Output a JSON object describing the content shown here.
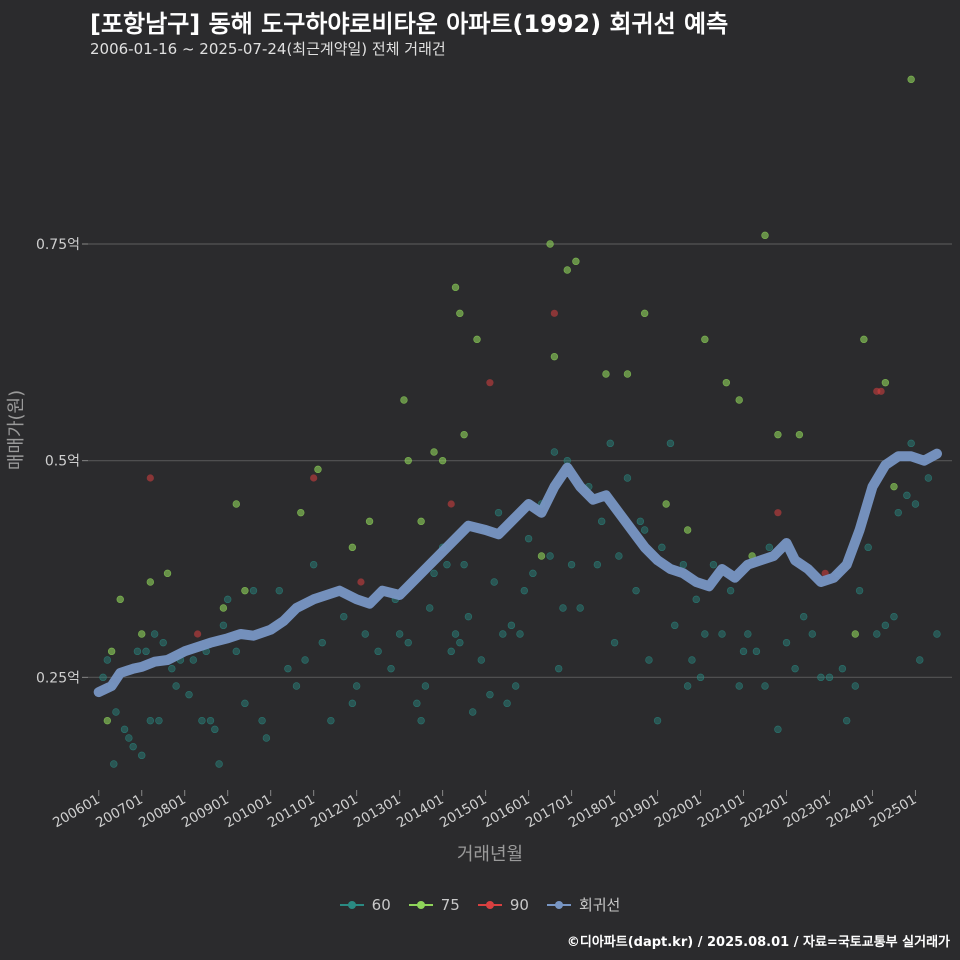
{
  "header": {
    "title": "[포항남구] 동해 도구하야로비타운 아파트(1992) 회귀선 예측",
    "subtitle": "2006-01-16 ~ 2025-07-24(최근계약일) 전체 거래건"
  },
  "footer": {
    "credit": "©디아파트(dapt.kr) / 2025.08.01 / 자료=국토교통부 실거래가"
  },
  "colors": {
    "background": "#2b2b2d",
    "grid": "#555555",
    "s60": "#2a8a82",
    "s75": "#8fd45a",
    "s90": "#d84040",
    "regression": "#7896c4"
  },
  "chart_data": {
    "type": "scatter",
    "title": "[포항남구] 동해 도구하야로비타운 아파트(1992) 회귀선 예측",
    "subtitle": "2006-01-16 ~ 2025-07-24(최근계약일) 전체 거래건",
    "xlabel": "거래년월",
    "ylabel": "매매가(원)",
    "x_unit": "decimal year",
    "xlim": [
      2005.75,
      2025.85
    ],
    "ylim": [
      0.12,
      0.96
    ],
    "x_ticks": [
      {
        "label": "200601",
        "value": 2006.0
      },
      {
        "label": "200701",
        "value": 2007.0
      },
      {
        "label": "200801",
        "value": 2008.0
      },
      {
        "label": "200901",
        "value": 2009.0
      },
      {
        "label": "201001",
        "value": 2010.0
      },
      {
        "label": "201101",
        "value": 2011.0
      },
      {
        "label": "201201",
        "value": 2012.0
      },
      {
        "label": "201301",
        "value": 2013.0
      },
      {
        "label": "201401",
        "value": 2014.0
      },
      {
        "label": "201501",
        "value": 2015.0
      },
      {
        "label": "201601",
        "value": 2016.0
      },
      {
        "label": "201701",
        "value": 2017.0
      },
      {
        "label": "201801",
        "value": 2018.0
      },
      {
        "label": "201901",
        "value": 2019.0
      },
      {
        "label": "202001",
        "value": 2020.0
      },
      {
        "label": "202101",
        "value": 2021.0
      },
      {
        "label": "202201",
        "value": 2022.0
      },
      {
        "label": "202301",
        "value": 2023.0
      },
      {
        "label": "202401",
        "value": 2024.0
      },
      {
        "label": "202501",
        "value": 2025.0
      }
    ],
    "y_ticks": [
      {
        "label": "0.25억",
        "value": 0.25
      },
      {
        "label": "0.5억",
        "value": 0.5
      },
      {
        "label": "0.75억",
        "value": 0.75
      }
    ],
    "legend": [
      "60",
      "75",
      "90",
      "회귀선"
    ],
    "series": [
      {
        "name": "60",
        "color": "#2a8a82",
        "points": [
          [
            2006.1,
            0.25
          ],
          [
            2006.2,
            0.27
          ],
          [
            2006.3,
            0.24
          ],
          [
            2006.35,
            0.15
          ],
          [
            2006.4,
            0.21
          ],
          [
            2006.6,
            0.19
          ],
          [
            2006.7,
            0.18
          ],
          [
            2006.8,
            0.17
          ],
          [
            2006.9,
            0.28
          ],
          [
            2007.0,
            0.16
          ],
          [
            2007.1,
            0.28
          ],
          [
            2007.2,
            0.2
          ],
          [
            2007.3,
            0.3
          ],
          [
            2007.4,
            0.2
          ],
          [
            2007.5,
            0.29
          ],
          [
            2007.7,
            0.26
          ],
          [
            2007.8,
            0.24
          ],
          [
            2007.9,
            0.27
          ],
          [
            2008.1,
            0.23
          ],
          [
            2008.2,
            0.27
          ],
          [
            2008.4,
            0.2
          ],
          [
            2008.5,
            0.28
          ],
          [
            2008.6,
            0.2
          ],
          [
            2008.7,
            0.19
          ],
          [
            2008.8,
            0.15
          ],
          [
            2008.9,
            0.31
          ],
          [
            2009.0,
            0.34
          ],
          [
            2009.2,
            0.28
          ],
          [
            2009.4,
            0.22
          ],
          [
            2009.6,
            0.35
          ],
          [
            2009.8,
            0.2
          ],
          [
            2009.9,
            0.18
          ],
          [
            2010.2,
            0.35
          ],
          [
            2010.4,
            0.26
          ],
          [
            2010.6,
            0.24
          ],
          [
            2010.8,
            0.27
          ],
          [
            2011.0,
            0.38
          ],
          [
            2011.2,
            0.29
          ],
          [
            2011.4,
            0.2
          ],
          [
            2011.7,
            0.32
          ],
          [
            2011.9,
            0.22
          ],
          [
            2012.0,
            0.24
          ],
          [
            2012.2,
            0.3
          ],
          [
            2012.5,
            0.28
          ],
          [
            2012.8,
            0.26
          ],
          [
            2012.9,
            0.34
          ],
          [
            2013.0,
            0.3
          ],
          [
            2013.2,
            0.29
          ],
          [
            2013.4,
            0.22
          ],
          [
            2013.5,
            0.2
          ],
          [
            2013.6,
            0.24
          ],
          [
            2013.7,
            0.33
          ],
          [
            2013.8,
            0.37
          ],
          [
            2014.0,
            0.4
          ],
          [
            2014.1,
            0.38
          ],
          [
            2014.2,
            0.28
          ],
          [
            2014.3,
            0.3
          ],
          [
            2014.4,
            0.29
          ],
          [
            2014.5,
            0.38
          ],
          [
            2014.6,
            0.32
          ],
          [
            2014.7,
            0.21
          ],
          [
            2014.9,
            0.27
          ],
          [
            2015.0,
            0.42
          ],
          [
            2015.1,
            0.23
          ],
          [
            2015.2,
            0.36
          ],
          [
            2015.3,
            0.44
          ],
          [
            2015.4,
            0.3
          ],
          [
            2015.5,
            0.22
          ],
          [
            2015.6,
            0.31
          ],
          [
            2015.7,
            0.24
          ],
          [
            2015.8,
            0.3
          ],
          [
            2015.9,
            0.35
          ],
          [
            2016.0,
            0.41
          ],
          [
            2016.1,
            0.37
          ],
          [
            2016.3,
            0.45
          ],
          [
            2016.5,
            0.39
          ],
          [
            2016.6,
            0.51
          ],
          [
            2016.7,
            0.26
          ],
          [
            2016.8,
            0.33
          ],
          [
            2016.9,
            0.5
          ],
          [
            2017.0,
            0.38
          ],
          [
            2017.2,
            0.33
          ],
          [
            2017.4,
            0.47
          ],
          [
            2017.6,
            0.38
          ],
          [
            2017.7,
            0.43
          ],
          [
            2017.9,
            0.52
          ],
          [
            2018.0,
            0.29
          ],
          [
            2018.1,
            0.39
          ],
          [
            2018.3,
            0.48
          ],
          [
            2018.5,
            0.35
          ],
          [
            2018.6,
            0.43
          ],
          [
            2018.7,
            0.42
          ],
          [
            2018.8,
            0.27
          ],
          [
            2019.0,
            0.2
          ],
          [
            2019.1,
            0.4
          ],
          [
            2019.3,
            0.52
          ],
          [
            2019.4,
            0.31
          ],
          [
            2019.6,
            0.38
          ],
          [
            2019.7,
            0.24
          ],
          [
            2019.8,
            0.27
          ],
          [
            2019.9,
            0.34
          ],
          [
            2020.0,
            0.25
          ],
          [
            2020.1,
            0.3
          ],
          [
            2020.3,
            0.38
          ],
          [
            2020.5,
            0.3
          ],
          [
            2020.7,
            0.35
          ],
          [
            2020.9,
            0.24
          ],
          [
            2021.0,
            0.28
          ],
          [
            2021.1,
            0.3
          ],
          [
            2021.3,
            0.28
          ],
          [
            2021.5,
            0.24
          ],
          [
            2021.6,
            0.4
          ],
          [
            2021.8,
            0.19
          ],
          [
            2022.0,
            0.29
          ],
          [
            2022.2,
            0.26
          ],
          [
            2022.4,
            0.32
          ],
          [
            2022.6,
            0.3
          ],
          [
            2022.8,
            0.25
          ],
          [
            2023.0,
            0.25
          ],
          [
            2023.2,
            0.37
          ],
          [
            2023.3,
            0.26
          ],
          [
            2023.4,
            0.2
          ],
          [
            2023.6,
            0.24
          ],
          [
            2023.7,
            0.35
          ],
          [
            2023.9,
            0.4
          ],
          [
            2024.1,
            0.3
          ],
          [
            2024.3,
            0.31
          ],
          [
            2024.5,
            0.32
          ],
          [
            2024.6,
            0.44
          ],
          [
            2024.8,
            0.46
          ],
          [
            2024.9,
            0.52
          ],
          [
            2025.0,
            0.45
          ],
          [
            2025.1,
            0.27
          ],
          [
            2025.3,
            0.48
          ],
          [
            2025.5,
            0.3
          ]
        ]
      },
      {
        "name": "75",
        "color": "#8fd45a",
        "points": [
          [
            2006.2,
            0.2
          ],
          [
            2006.3,
            0.28
          ],
          [
            2006.5,
            0.34
          ],
          [
            2007.0,
            0.3
          ],
          [
            2007.2,
            0.36
          ],
          [
            2007.6,
            0.37
          ],
          [
            2008.9,
            0.33
          ],
          [
            2009.2,
            0.45
          ],
          [
            2009.4,
            0.35
          ],
          [
            2010.7,
            0.44
          ],
          [
            2011.1,
            0.49
          ],
          [
            2011.9,
            0.4
          ],
          [
            2012.3,
            0.43
          ],
          [
            2013.1,
            0.57
          ],
          [
            2013.2,
            0.5
          ],
          [
            2013.5,
            0.43
          ],
          [
            2013.8,
            0.51
          ],
          [
            2014.0,
            0.5
          ],
          [
            2014.3,
            0.7
          ],
          [
            2014.4,
            0.67
          ],
          [
            2014.5,
            0.53
          ],
          [
            2014.8,
            0.64
          ],
          [
            2016.3,
            0.39
          ],
          [
            2016.5,
            0.75
          ],
          [
            2016.6,
            0.62
          ],
          [
            2016.9,
            0.72
          ],
          [
            2017.1,
            0.73
          ],
          [
            2017.8,
            0.6
          ],
          [
            2018.3,
            0.6
          ],
          [
            2018.7,
            0.67
          ],
          [
            2019.2,
            0.45
          ],
          [
            2019.7,
            0.42
          ],
          [
            2020.1,
            0.64
          ],
          [
            2020.6,
            0.59
          ],
          [
            2020.9,
            0.57
          ],
          [
            2021.2,
            0.39
          ],
          [
            2021.5,
            0.76
          ],
          [
            2021.8,
            0.53
          ],
          [
            2022.3,
            0.53
          ],
          [
            2023.6,
            0.3
          ],
          [
            2023.8,
            0.64
          ],
          [
            2024.3,
            0.59
          ],
          [
            2024.5,
            0.47
          ],
          [
            2024.9,
            0.94
          ]
        ]
      },
      {
        "name": "90",
        "color": "#d84040",
        "points": [
          [
            2007.2,
            0.48
          ],
          [
            2008.3,
            0.3
          ],
          [
            2011.0,
            0.48
          ],
          [
            2012.1,
            0.36
          ],
          [
            2014.2,
            0.45
          ],
          [
            2015.1,
            0.59
          ],
          [
            2016.6,
            0.67
          ],
          [
            2021.8,
            0.44
          ],
          [
            2022.9,
            0.37
          ],
          [
            2024.1,
            0.58
          ],
          [
            2024.2,
            0.58
          ]
        ]
      }
    ],
    "regression": {
      "name": "회귀선",
      "color": "#7896c4",
      "points": [
        [
          2006.0,
          0.233
        ],
        [
          2006.3,
          0.24
        ],
        [
          2006.5,
          0.255
        ],
        [
          2006.8,
          0.26
        ],
        [
          2007.0,
          0.262
        ],
        [
          2007.3,
          0.268
        ],
        [
          2007.6,
          0.27
        ],
        [
          2008.0,
          0.28
        ],
        [
          2008.3,
          0.285
        ],
        [
          2008.6,
          0.29
        ],
        [
          2009.0,
          0.295
        ],
        [
          2009.3,
          0.3
        ],
        [
          2009.6,
          0.298
        ],
        [
          2010.0,
          0.305
        ],
        [
          2010.3,
          0.315
        ],
        [
          2010.6,
          0.33
        ],
        [
          2011.0,
          0.34
        ],
        [
          2011.3,
          0.345
        ],
        [
          2011.6,
          0.35
        ],
        [
          2012.0,
          0.34
        ],
        [
          2012.3,
          0.335
        ],
        [
          2012.6,
          0.35
        ],
        [
          2013.0,
          0.345
        ],
        [
          2013.3,
          0.36
        ],
        [
          2013.6,
          0.375
        ],
        [
          2014.0,
          0.395
        ],
        [
          2014.3,
          0.41
        ],
        [
          2014.6,
          0.425
        ],
        [
          2015.0,
          0.42
        ],
        [
          2015.3,
          0.415
        ],
        [
          2015.6,
          0.43
        ],
        [
          2016.0,
          0.45
        ],
        [
          2016.3,
          0.44
        ],
        [
          2016.6,
          0.47
        ],
        [
          2016.9,
          0.492
        ],
        [
          2017.2,
          0.47
        ],
        [
          2017.5,
          0.455
        ],
        [
          2017.8,
          0.46
        ],
        [
          2018.1,
          0.44
        ],
        [
          2018.4,
          0.42
        ],
        [
          2018.7,
          0.4
        ],
        [
          2019.0,
          0.385
        ],
        [
          2019.3,
          0.375
        ],
        [
          2019.6,
          0.37
        ],
        [
          2019.9,
          0.36
        ],
        [
          2020.2,
          0.355
        ],
        [
          2020.5,
          0.375
        ],
        [
          2020.8,
          0.365
        ],
        [
          2021.1,
          0.38
        ],
        [
          2021.4,
          0.385
        ],
        [
          2021.7,
          0.39
        ],
        [
          2022.0,
          0.405
        ],
        [
          2022.2,
          0.385
        ],
        [
          2022.5,
          0.375
        ],
        [
          2022.8,
          0.36
        ],
        [
          2023.1,
          0.365
        ],
        [
          2023.4,
          0.38
        ],
        [
          2023.7,
          0.42
        ],
        [
          2024.0,
          0.47
        ],
        [
          2024.3,
          0.495
        ],
        [
          2024.6,
          0.505
        ],
        [
          2024.9,
          0.505
        ],
        [
          2025.2,
          0.5
        ],
        [
          2025.5,
          0.508
        ]
      ]
    }
  }
}
